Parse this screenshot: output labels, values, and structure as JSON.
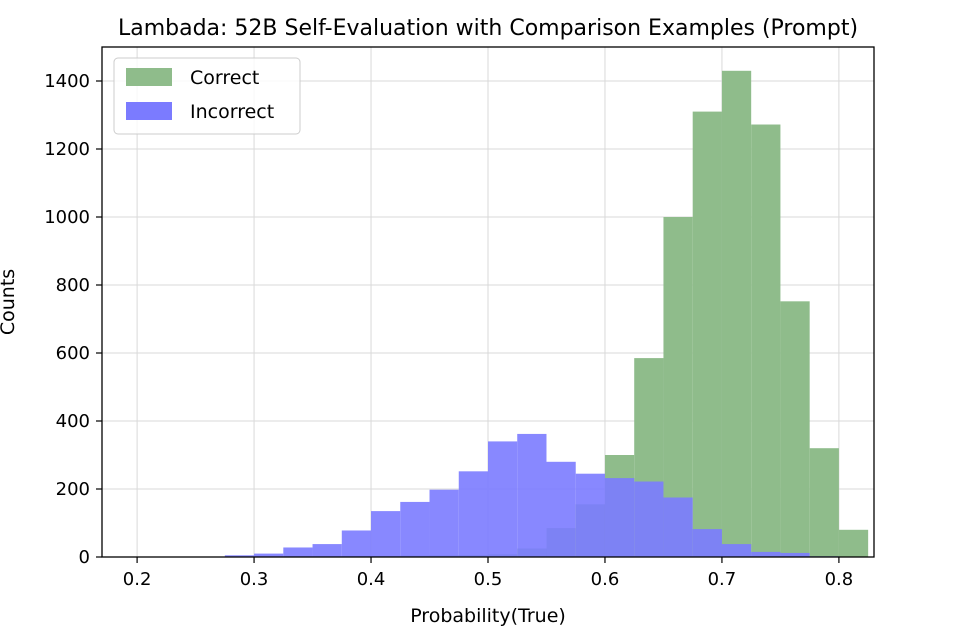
{
  "chart_data": {
    "type": "bar",
    "title": "Lambada: 52B Self-Evaluation with Comparison Examples (Prompt)",
    "xlabel": "Probability(True)",
    "ylabel": "Counts",
    "xlim": [
      0.17,
      0.83
    ],
    "ylim": [
      0,
      1500
    ],
    "xticks": [
      "0.2",
      "0.3",
      "0.4",
      "0.5",
      "0.6",
      "0.7",
      "0.8"
    ],
    "yticks": [
      "0",
      "200",
      "400",
      "600",
      "800",
      "1000",
      "1200",
      "1400"
    ],
    "grid": true,
    "legend_position": "top-left",
    "bin_edges": [
      0.2,
      0.225,
      0.25,
      0.275,
      0.3,
      0.325,
      0.35,
      0.375,
      0.4,
      0.425,
      0.45,
      0.475,
      0.5,
      0.525,
      0.55,
      0.575,
      0.6,
      0.625,
      0.65,
      0.675,
      0.7,
      0.725,
      0.75,
      0.775,
      0.8
    ],
    "series": [
      {
        "name": "Correct",
        "color": "#8fbc8b",
        "values": [
          0,
          0,
          0,
          1,
          1,
          2,
          2,
          3,
          3,
          4,
          5,
          6,
          8,
          25,
          85,
          155,
          300,
          585,
          1000,
          1310,
          1430,
          1272,
          752,
          320,
          80
        ]
      },
      {
        "name": "Incorrect",
        "color": "#7b7bff",
        "values": [
          0,
          0,
          0,
          5,
          10,
          28,
          38,
          78,
          135,
          162,
          198,
          252,
          340,
          362,
          280,
          245,
          232,
          222,
          175,
          82,
          38,
          15,
          12,
          2,
          0
        ]
      }
    ]
  }
}
